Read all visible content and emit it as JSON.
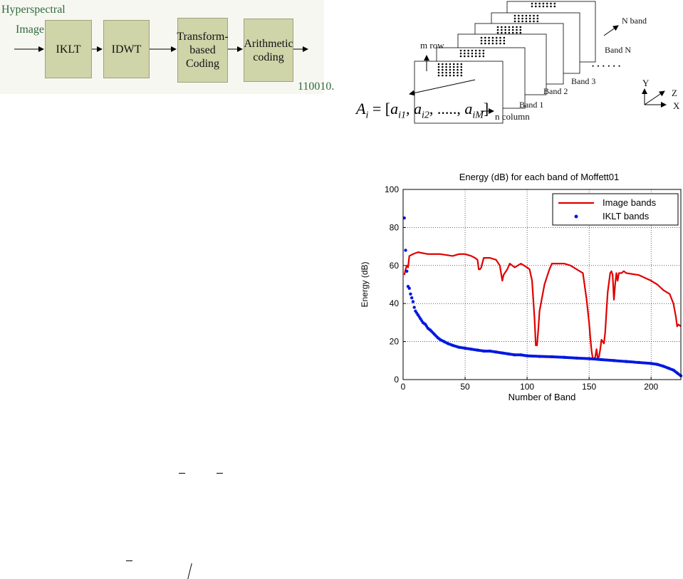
{
  "diagram": {
    "input_label_line1": "Hyperspectral",
    "input_label_line2": "Image",
    "blocks": [
      {
        "label": "IKLT"
      },
      {
        "label": "IDWT"
      },
      {
        "label": "Transform-\nbased\nCoding"
      },
      {
        "label": "Arithmetic\ncoding"
      }
    ],
    "output_label": "110010."
  },
  "band_figure": {
    "m_row": "m row",
    "n_column": "n column",
    "n_band": "N band",
    "band_1": "Band 1",
    "band_2": "Band 2",
    "band_3": "Band 3",
    "band_n": "Band N",
    "ellipsis": "• • • • • •",
    "axis_y": "Y",
    "axis_z": "Z",
    "axis_x": "X",
    "formula": "A_i = [a_i1, a_i2, ....., a_iM]"
  },
  "chart_data": {
    "type": "line",
    "title": "Energy (dB) for each band of Moffett01",
    "xlabel": "Number of Band",
    "ylabel": "Energy (dB)",
    "xlim": [
      0,
      224
    ],
    "ylim": [
      0,
      100
    ],
    "xticks": [
      0,
      50,
      100,
      150,
      200
    ],
    "yticks": [
      0,
      20,
      40,
      60,
      80,
      100
    ],
    "grid": true,
    "legend_position": "top-right",
    "colors": {
      "image": "#e00000",
      "iklt": "#0018e0"
    },
    "series": [
      {
        "name": "Image bands",
        "style": "line",
        "x": [
          1,
          2,
          3,
          4,
          5,
          8,
          12,
          20,
          30,
          40,
          45,
          50,
          55,
          58,
          60,
          61,
          62,
          63,
          65,
          70,
          75,
          78,
          80,
          81,
          82,
          84,
          86,
          88,
          90,
          95,
          100,
          102,
          104,
          105,
          106,
          107,
          108,
          109,
          110,
          112,
          114,
          116,
          118,
          120,
          125,
          130,
          135,
          140,
          145,
          148,
          150,
          151,
          152,
          153,
          154,
          155,
          156,
          157,
          158,
          159,
          160,
          161,
          162,
          163,
          164,
          165,
          166,
          167,
          168,
          169,
          170,
          171,
          172,
          173,
          174,
          176,
          178,
          180,
          190,
          200,
          205,
          210,
          215,
          218,
          220,
          221,
          222,
          224
        ],
        "y": [
          55,
          58,
          60,
          59,
          65,
          66,
          67,
          66,
          66,
          65,
          66,
          66,
          65,
          64,
          63,
          58,
          58,
          59,
          64,
          64,
          63,
          60,
          52,
          55,
          56,
          58,
          61,
          60,
          59,
          61,
          59,
          58,
          52,
          42,
          32,
          18,
          18,
          26,
          36,
          43,
          50,
          54,
          58,
          61,
          61,
          61,
          60,
          58,
          56,
          42,
          30,
          22,
          15,
          11,
          11,
          12,
          16,
          11,
          12,
          16,
          21,
          20,
          19,
          25,
          36,
          46,
          51,
          56,
          57,
          55,
          42,
          50,
          56,
          52,
          56,
          56,
          57,
          56,
          55,
          52,
          50,
          47,
          45,
          40,
          33,
          28,
          29,
          28
        ]
      },
      {
        "name": "IKLT bands",
        "style": "markers",
        "x": [
          1,
          2,
          3,
          4,
          5,
          6,
          7,
          8,
          9,
          10,
          12,
          14,
          16,
          18,
          20,
          22,
          25,
          28,
          30,
          33,
          36,
          40,
          45,
          50,
          55,
          60,
          65,
          70,
          75,
          80,
          85,
          90,
          95,
          100,
          110,
          120,
          130,
          140,
          150,
          160,
          170,
          180,
          190,
          200,
          205,
          210,
          214,
          218,
          221,
          224
        ],
        "y": [
          85,
          68,
          57,
          49,
          48,
          45,
          43,
          41,
          38,
          36,
          34,
          32,
          30,
          29,
          27,
          26,
          24,
          22,
          21,
          20,
          19,
          18,
          17,
          16.5,
          16,
          15.5,
          15,
          15,
          14.5,
          14,
          13.5,
          13,
          13,
          12.5,
          12.2,
          12,
          11.7,
          11.3,
          11,
          10.5,
          10,
          9.5,
          9,
          8.5,
          8,
          7,
          6,
          5,
          3.5,
          2
        ]
      }
    ]
  }
}
